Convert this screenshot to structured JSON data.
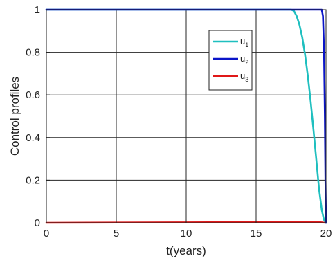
{
  "chart_data": {
    "type": "line",
    "title": "",
    "xlabel": "t(years)",
    "ylabel": "Control profiles",
    "xlim": [
      0,
      20
    ],
    "ylim": [
      0,
      1
    ],
    "xticks": [
      "0",
      "5",
      "10",
      "15",
      "20"
    ],
    "yticks": [
      "0",
      "0.2",
      "0.4",
      "0.6",
      "0.8",
      "1"
    ],
    "grid": true,
    "legend_position": "top-right",
    "series": [
      {
        "name": "u1",
        "label_base": "u",
        "label_sub": "1",
        "color": "#1fbfbf",
        "x": [
          0,
          17.5,
          17.7,
          17.9,
          18.1,
          18.3,
          18.5,
          18.7,
          18.9,
          19.1,
          19.3,
          19.5,
          19.7,
          19.85,
          20
        ],
        "y": [
          1,
          1,
          0.995,
          0.97,
          0.93,
          0.87,
          0.79,
          0.69,
          0.57,
          0.44,
          0.3,
          0.16,
          0.06,
          0.015,
          0
        ]
      },
      {
        "name": "u2",
        "label_base": "u",
        "label_sub": "2",
        "color": "#0a14c8",
        "x": [
          0,
          19.7,
          19.78,
          19.86,
          19.92,
          19.96,
          20
        ],
        "y": [
          1,
          1,
          0.97,
          0.8,
          0.5,
          0.2,
          0
        ]
      },
      {
        "name": "u3",
        "label_base": "u",
        "label_sub": "3",
        "color": "#e01818",
        "x": [
          0,
          5,
          10,
          15,
          18,
          19,
          19.5,
          19.8,
          20
        ],
        "y": [
          0,
          0.001,
          0.002,
          0.003,
          0.004,
          0.004,
          0.003,
          0.001,
          0
        ]
      }
    ]
  }
}
